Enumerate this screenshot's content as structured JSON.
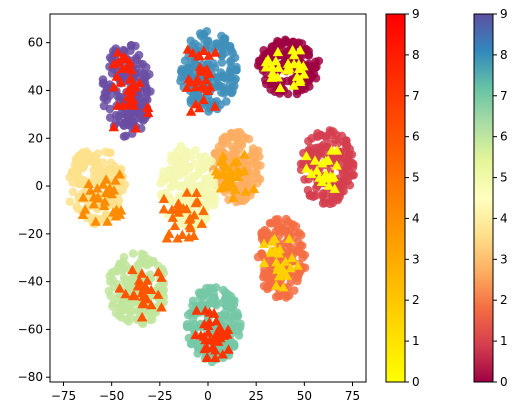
{
  "chart_data": {
    "type": "scatter",
    "xlim": [
      -82,
      82
    ],
    "ylim": [
      -82,
      72
    ],
    "x_ticks": [
      -75,
      -50,
      -25,
      0,
      25,
      50,
      75
    ],
    "y_ticks": [
      -80,
      -60,
      -40,
      -20,
      0,
      20,
      40,
      60
    ],
    "grid": false,
    "colormap_circles": "Spectral",
    "colormap_triangles": "autumn_r",
    "circle_clusters": [
      {
        "label": 0,
        "cx": 42,
        "cy": 50,
        "rx": 16,
        "ry": 12,
        "n": 170,
        "color": "#9e0142"
      },
      {
        "label": 1,
        "cx": 62,
        "cy": 8,
        "rx": 14,
        "ry": 16,
        "n": 160,
        "color": "#d53e4f"
      },
      {
        "label": 2,
        "cx": 38,
        "cy": -30,
        "rx": 13,
        "ry": 17,
        "n": 150,
        "color": "#f46d43"
      },
      {
        "label": 3,
        "cx": 15,
        "cy": 8,
        "rx": 13,
        "ry": 15,
        "n": 150,
        "color": "#fdae61"
      },
      {
        "label": 4,
        "cx": -58,
        "cy": 0,
        "rx": 15,
        "ry": 16,
        "n": 160,
        "color": "#fee08b"
      },
      {
        "label": 5,
        "cx": -10,
        "cy": 0,
        "rx": 15,
        "ry": 18,
        "n": 160,
        "color": "#f5f8b0"
      },
      {
        "label": 6,
        "cx": -37,
        "cy": -43,
        "rx": 16,
        "ry": 15,
        "n": 160,
        "color": "#c1e59c"
      },
      {
        "label": 7,
        "cx": 3,
        "cy": -58,
        "rx": 14,
        "ry": 16,
        "n": 160,
        "color": "#74c8a4"
      },
      {
        "label": 8,
        "cx": 0,
        "cy": 48,
        "rx": 15,
        "ry": 17,
        "n": 170,
        "color": "#3f8fbb"
      },
      {
        "label": 9,
        "cx": -42,
        "cy": 40,
        "rx": 13,
        "ry": 20,
        "n": 170,
        "color": "#6a4ea3"
      }
    ],
    "triangle_clusters": [
      {
        "label": 8,
        "cx": 40,
        "cy": 50,
        "rx": 10,
        "ry": 9,
        "n": 28,
        "color": "#ffff00"
      },
      {
        "label": 8,
        "cx": 60,
        "cy": 5,
        "rx": 9,
        "ry": 10,
        "n": 24,
        "color": "#ffff00"
      },
      {
        "label": 7,
        "cx": 38,
        "cy": -33,
        "rx": 9,
        "ry": 11,
        "n": 24,
        "color": "#ffd000"
      },
      {
        "label": 5,
        "cx": 13,
        "cy": 4,
        "rx": 11,
        "ry": 10,
        "n": 30,
        "color": "#ffa500"
      },
      {
        "label": 4,
        "cx": -55,
        "cy": -5,
        "rx": 10,
        "ry": 10,
        "n": 28,
        "color": "#ff8c00"
      },
      {
        "label": 1,
        "cx": -12,
        "cy": -12,
        "rx": 11,
        "ry": 10,
        "n": 28,
        "color": "#ff6a00"
      },
      {
        "label": 2,
        "cx": -35,
        "cy": -45,
        "rx": 11,
        "ry": 10,
        "n": 28,
        "color": "#ff5500"
      },
      {
        "label": 1,
        "cx": 2,
        "cy": -62,
        "rx": 9,
        "ry": 10,
        "n": 34,
        "color": "#ff3300"
      },
      {
        "label": 0,
        "cx": -2,
        "cy": 45,
        "rx": 9,
        "ry": 14,
        "n": 30,
        "color": "#ff2a00"
      },
      {
        "label": 0,
        "cx": -40,
        "cy": 40,
        "rx": 9,
        "ry": 16,
        "n": 32,
        "color": "#ff2000"
      }
    ],
    "colorbars": [
      {
        "name": "triangles",
        "cmap": "autumn_r",
        "range": [
          0,
          9
        ],
        "ticks": [
          0,
          1,
          2,
          3,
          4,
          5,
          6,
          7,
          8,
          9
        ],
        "stops": [
          "#ffff00",
          "#ff0000"
        ]
      },
      {
        "name": "circles",
        "cmap": "Spectral",
        "range": [
          0,
          9
        ],
        "ticks": [
          0,
          1,
          2,
          3,
          4,
          5,
          6,
          7,
          8,
          9
        ],
        "stops": [
          "#9e0142",
          "#d53e4f",
          "#f46d43",
          "#fdae61",
          "#fee08b",
          "#ffffbf",
          "#e6f598",
          "#abdda4",
          "#66c2a5",
          "#3288bd",
          "#5e4fa2"
        ]
      }
    ]
  }
}
